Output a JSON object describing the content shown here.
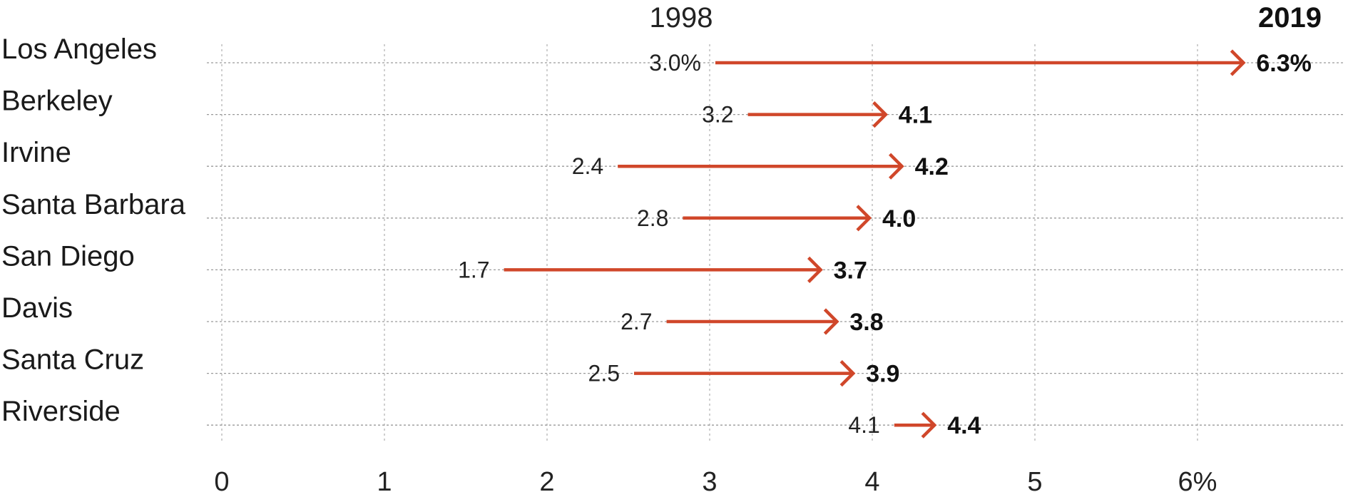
{
  "chart_data": {
    "type": "arrow-dumbbell",
    "series_labels": {
      "start": "1998",
      "end": "2019"
    },
    "categories": [
      "Los Angeles",
      "Berkeley",
      "Irvine",
      "Santa Barbara",
      "San Diego",
      "Davis",
      "Santa Cruz",
      "Riverside"
    ],
    "series": [
      {
        "name": "1998",
        "values": [
          3.0,
          3.2,
          2.4,
          2.8,
          1.7,
          2.7,
          2.5,
          4.1
        ]
      },
      {
        "name": "2019",
        "values": [
          6.3,
          4.1,
          4.2,
          4.0,
          3.7,
          3.8,
          3.9,
          4.4
        ]
      }
    ],
    "start_labels": [
      "3.0%",
      "3.2",
      "2.4",
      "2.8",
      "1.7",
      "2.7",
      "2.5",
      "4.1"
    ],
    "end_labels": [
      "6.3%",
      "4.1",
      "4.2",
      "4.0",
      "3.7",
      "3.8",
      "3.9",
      "4.4"
    ],
    "x_ticks": [
      0,
      1,
      2,
      3,
      4,
      5,
      6
    ],
    "x_tick_labels": [
      "0",
      "1",
      "2",
      "3",
      "4",
      "5",
      "6%"
    ],
    "xlim": [
      0,
      6.7
    ],
    "grid": true,
    "colors": {
      "arrow": "#d0472a",
      "grid": "#b5b5b5",
      "text": "#1a1a1a"
    }
  }
}
